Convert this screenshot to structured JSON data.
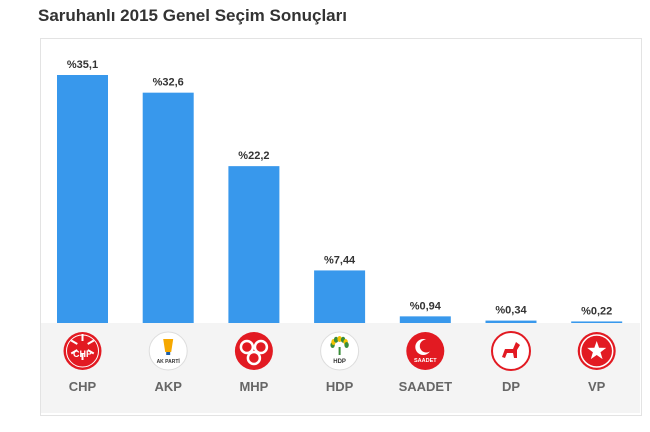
{
  "title": "Saruhanlı 2015 Genel Seçim Sonuçları",
  "colors": {
    "bar": "#3898ec",
    "footer_bg": "#f4f4f4",
    "logo_red": "#e21a22",
    "hdp_green": "#3a8d3a",
    "akp_yellow": "#f6a800"
  },
  "chart_data": {
    "type": "bar",
    "title": "Saruhanlı 2015 Genel Seçim Sonuçları",
    "categories": [
      "CHP",
      "AKP",
      "MHP",
      "HDP",
      "SAADET",
      "DP",
      "VP"
    ],
    "values": [
      35.1,
      32.6,
      22.2,
      7.44,
      0.94,
      0.34,
      0.22
    ],
    "value_labels": [
      "%35,1",
      "%32,6",
      "%22,2",
      "%7,44",
      "%0,94",
      "%0,34",
      "%0,22"
    ],
    "ylim": [
      0,
      37.5
    ],
    "grid": false,
    "legend": "none",
    "icons": [
      "chp-logo-icon",
      "akp-logo-icon",
      "mhp-logo-icon",
      "hdp-logo-icon",
      "saadet-logo-icon",
      "dp-logo-icon",
      "vp-logo-icon"
    ],
    "logo_texts": [
      "CHP",
      "AK PARTİ",
      "",
      "HDP",
      "SAADET",
      "",
      ""
    ]
  }
}
